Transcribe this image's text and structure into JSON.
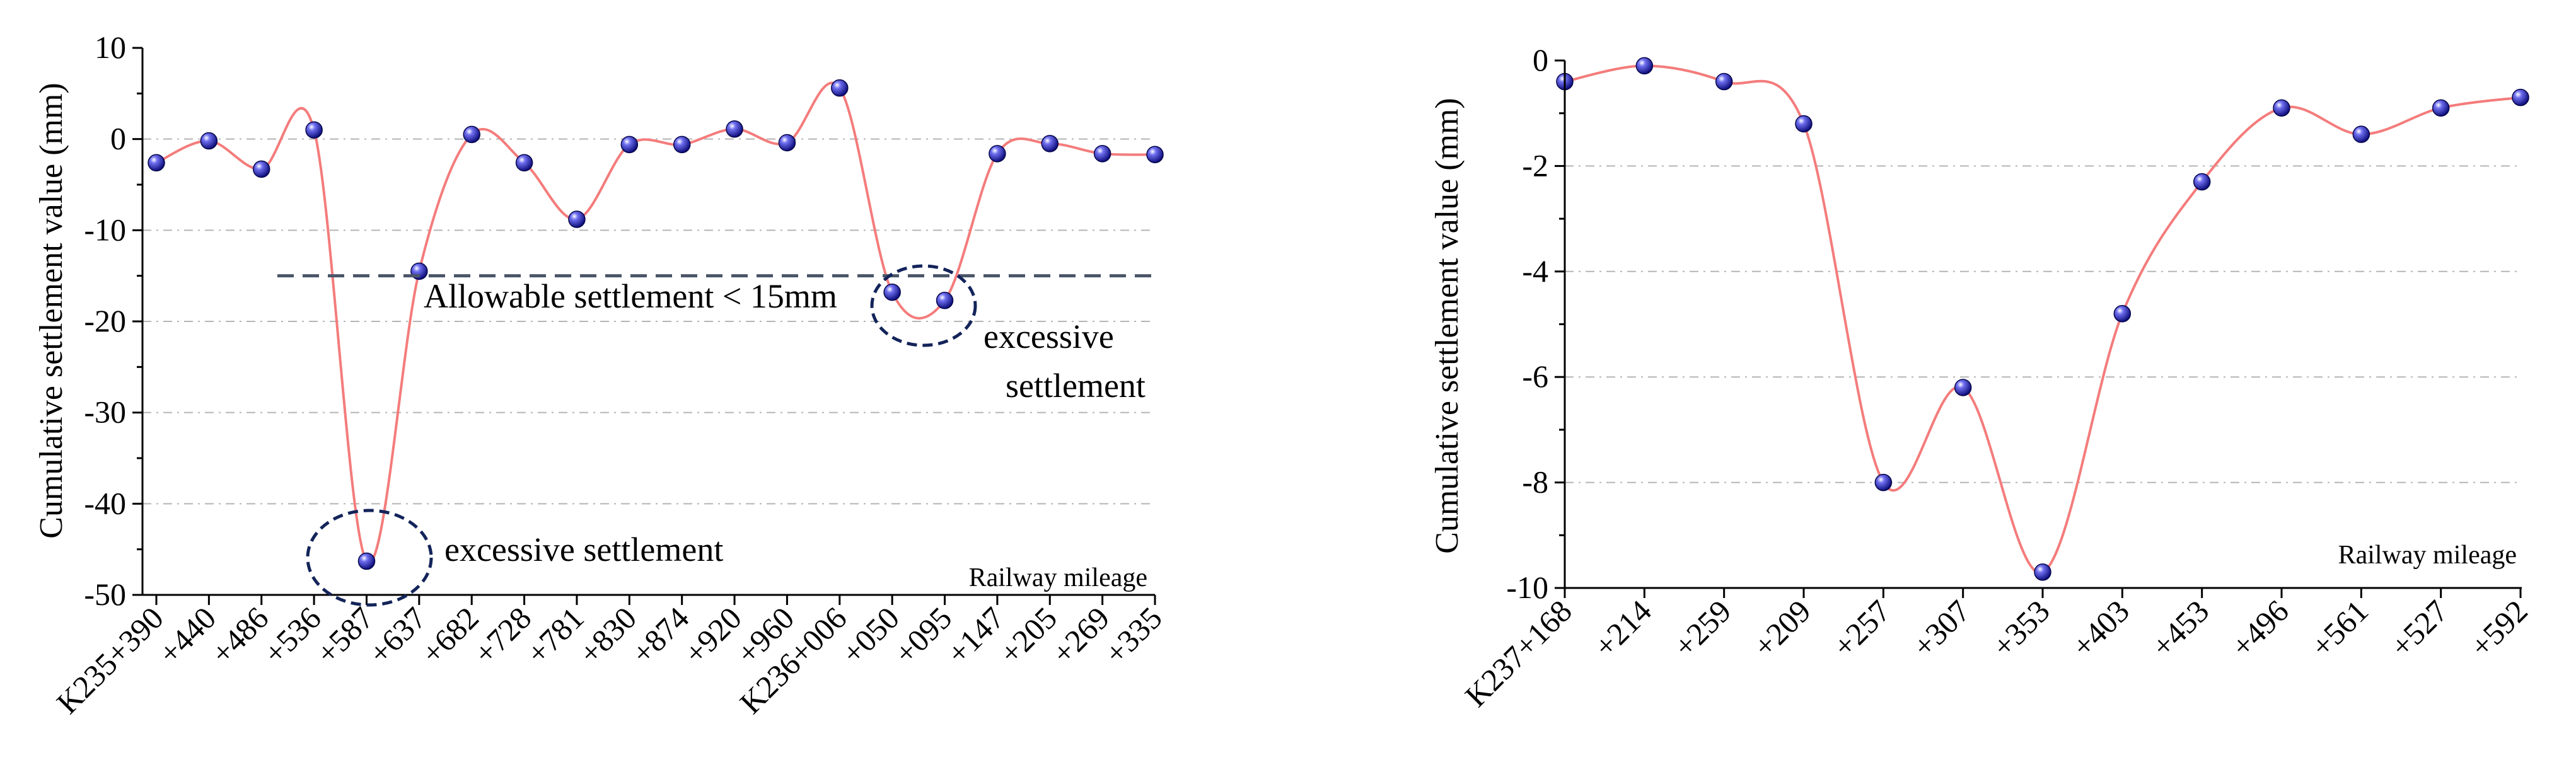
{
  "chart_data": [
    {
      "type": "line",
      "ylabel": "Cumulative settlement value (mm)",
      "xlabel": "Railway mileage",
      "ylim": [
        -50,
        10
      ],
      "yticks": [
        10,
        0,
        -10,
        -20,
        -30,
        -40,
        -50
      ],
      "y_tick_labels": [
        "10",
        "0",
        "-10",
        "-20",
        "-30",
        "-40",
        "-50"
      ],
      "categories": [
        "K235+390",
        "+440",
        "+486",
        "+536",
        "+587",
        "+637",
        "+682",
        "+728",
        "+781",
        "+830",
        "+874",
        "+920",
        "+960",
        "K236+006",
        "+050",
        "+095",
        "+147",
        "+205",
        "+269",
        "+335"
      ],
      "values": [
        -2.6,
        -0.2,
        -3.3,
        1.0,
        -46.3,
        -14.5,
        0.5,
        -2.6,
        -8.8,
        -0.6,
        -0.6,
        1.1,
        -0.4,
        5.6,
        -16.8,
        -17.7,
        -1.6,
        -0.5,
        -1.6,
        -1.7
      ],
      "reference_line": {
        "value": -15,
        "label": "Allowable settlement < 15mm"
      },
      "annotations": [
        {
          "text": "excessive settlement",
          "point_index": 4
        },
        {
          "text_lines": [
            "excessive",
            "settlement"
          ],
          "point_index": 14.5
        }
      ],
      "grid": true,
      "colors": {
        "line": "#f47c7c",
        "marker": "#1a1aa0",
        "reference": "#4a5568",
        "ellipse": "#13245a"
      }
    },
    {
      "type": "line",
      "ylabel": "Cumulative settlement value (mm)",
      "xlabel": "Railway mileage",
      "ylim": [
        -10,
        0
      ],
      "yticks": [
        0,
        -2,
        -4,
        -6,
        -8,
        -10
      ],
      "y_tick_labels": [
        "0",
        "-2",
        "-4",
        "-6",
        "-8",
        "-10"
      ],
      "categories": [
        "K237+168",
        "+214",
        "+259",
        "+209",
        "+257",
        "+307",
        "+353",
        "+403",
        "+453",
        "+496",
        "+561",
        "+527",
        "+592"
      ],
      "values": [
        -0.4,
        -0.1,
        -0.4,
        -1.2,
        -8.0,
        -6.2,
        -9.7,
        -4.8,
        -2.3,
        -0.9,
        -1.4,
        -0.9,
        -0.7
      ],
      "grid": true,
      "colors": {
        "line": "#f47c7c",
        "marker": "#1a1aa0"
      }
    }
  ]
}
